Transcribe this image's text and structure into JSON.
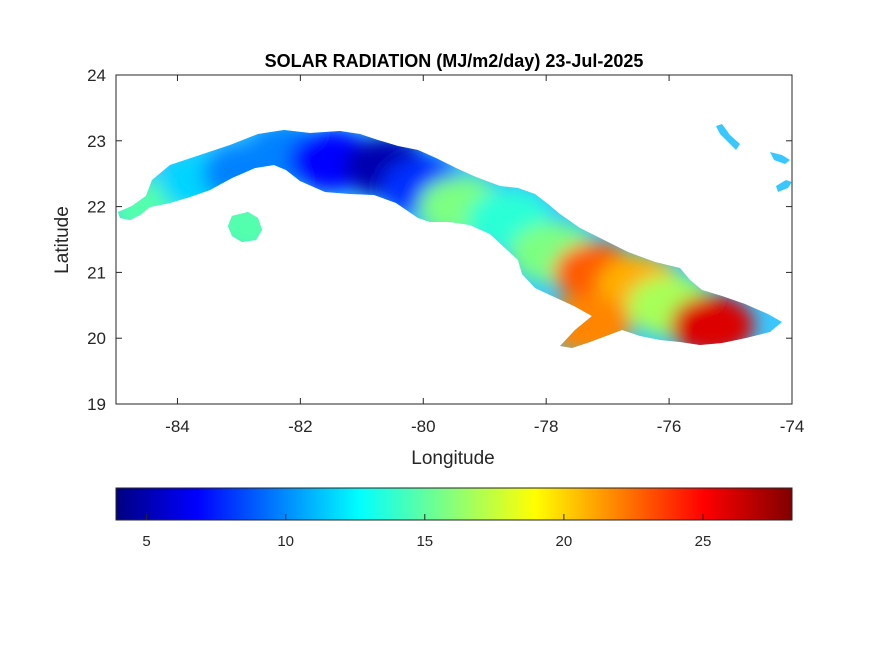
{
  "chart_data": {
    "type": "heatmap",
    "title": "SOLAR RADIATION (MJ/m2/day) 23-Jul-2025",
    "xlabel": "Longitude",
    "ylabel": "Latitude",
    "xlim": [
      -85,
      -74
    ],
    "ylim": [
      19,
      24
    ],
    "x_ticks": [
      -84,
      -82,
      -80,
      -78,
      -76,
      -74
    ],
    "y_ticks": [
      19,
      20,
      21,
      22,
      23,
      24
    ],
    "x_tick_labels": [
      "-84",
      "-82",
      "-80",
      "-78",
      "-76",
      "-74"
    ],
    "y_tick_labels": [
      "19",
      "20",
      "21",
      "22",
      "23",
      "24"
    ],
    "colormap": "jet",
    "colorbar": {
      "range": [
        3.9,
        28.2
      ],
      "ticks": [
        5,
        10,
        15,
        20,
        25
      ],
      "tick_labels": [
        "5",
        "10",
        "15",
        "20",
        "25"
      ],
      "orientation": "horizontal",
      "placement": "bottom"
    },
    "regions": [
      {
        "name": "",
        "lon": -84.4,
        "lat": 21.95,
        "value": 15
      },
      {
        "name": "",
        "lon": -83.6,
        "lat": 22.35,
        "value": 12
      },
      {
        "name": "",
        "lon": -82.9,
        "lat": 22.5,
        "value": 10
      },
      {
        "name": "",
        "lon": -82.2,
        "lat": 22.8,
        "value": 10
      },
      {
        "name": "",
        "lon": -81.5,
        "lat": 22.7,
        "value": 7
      },
      {
        "name": "",
        "lon": -80.6,
        "lat": 22.6,
        "value": 5
      },
      {
        "name": "",
        "lon": -80.0,
        "lat": 22.3,
        "value": 8
      },
      {
        "name": "",
        "lon": -79.4,
        "lat": 22.0,
        "value": 16
      },
      {
        "name": "",
        "lon": -78.6,
        "lat": 21.8,
        "value": 14
      },
      {
        "name": "",
        "lon": -77.9,
        "lat": 21.3,
        "value": 16
      },
      {
        "name": "",
        "lon": -77.2,
        "lat": 21.0,
        "value": 23
      },
      {
        "name": "",
        "lon": -76.5,
        "lat": 20.8,
        "value": 21
      },
      {
        "name": "",
        "lon": -76.0,
        "lat": 20.5,
        "value": 17
      },
      {
        "name": "",
        "lon": -77.3,
        "lat": 20.2,
        "value": 22
      },
      {
        "name": "",
        "lon": -75.3,
        "lat": 20.2,
        "value": 26
      },
      {
        "name": "",
        "lon": -82.8,
        "lat": 21.75,
        "value": 15
      }
    ]
  }
}
